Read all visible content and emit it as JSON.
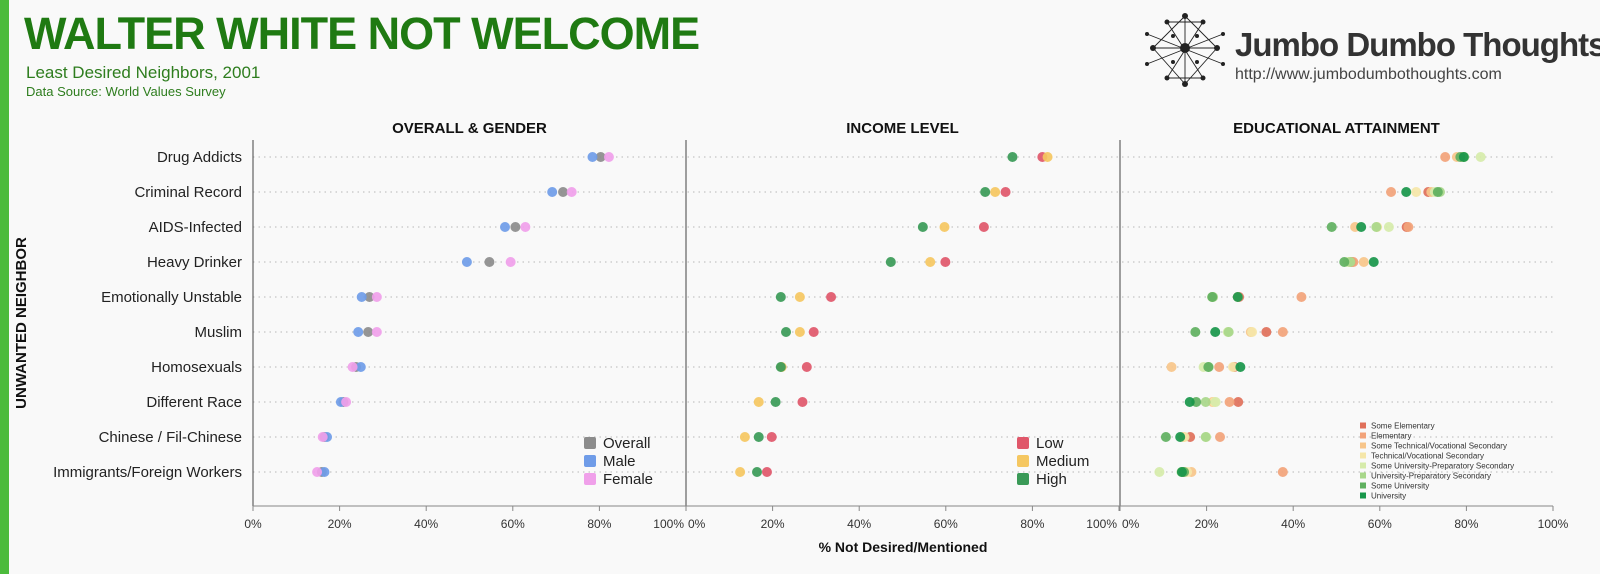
{
  "header": {
    "title": "WALTER WHITE NOT WELCOME",
    "subtitle": "Least Desired Neighbors, 2001",
    "source": "Data Source: World Values Survey"
  },
  "brand": {
    "name": "Jumbo Dumbo Thoughts",
    "url": "http://www.jumbodumbothoughts.com",
    "logo_icon": "network-graph-icon"
  },
  "colors": {
    "accent_bar": "#4cbb3c",
    "title": "#1f7a12"
  },
  "chart_data": {
    "type": "scatter",
    "ylabel": "UNWANTED NEIGHBOR",
    "xlabel": "% Not Desired/Mentioned",
    "categories": [
      "Drug Addicts",
      "Criminal Record",
      "AIDS-Infected",
      "Heavy Drinker",
      "Emotionally Unstable",
      "Muslim",
      "Homosexuals",
      "Different Race",
      "Chinese / Fil-Chinese",
      "Immigrants/Foreign Workers"
    ],
    "xlim": [
      0,
      100
    ],
    "xticks": [
      "0%",
      "20%",
      "40%",
      "60%",
      "80%",
      "100%"
    ],
    "grid": "dotted horizontal",
    "panels": [
      {
        "title": "OVERALL & GENDER",
        "legend_position": "bottom-right",
        "series": [
          {
            "name": "Overall",
            "color": "#8c8c8c",
            "values": [
              80.3,
              71.6,
              60.6,
              54.6,
              26.9,
              26.6,
              23.8,
              20.9,
              16.5,
              15.9
            ]
          },
          {
            "name": "Male",
            "color": "#6f9ce8",
            "values": [
              78.4,
              69.1,
              58.2,
              49.4,
              25.1,
              24.3,
              24.9,
              20.3,
              17.1,
              16.5
            ]
          },
          {
            "name": "Female",
            "color": "#f0a0ea",
            "values": [
              82.2,
              73.6,
              62.9,
              59.5,
              28.6,
              28.6,
              23.0,
              21.5,
              16.1,
              14.8
            ]
          }
        ]
      },
      {
        "title": "INCOME LEVEL",
        "legend_position": "bottom-right",
        "series": [
          {
            "name": "Low",
            "color": "#e0576a",
            "values": [
              82.3,
              73.8,
              68.8,
              59.9,
              33.5,
              29.5,
              27.9,
              26.9,
              19.8,
              18.7
            ]
          },
          {
            "name": "Medium",
            "color": "#f5c761",
            "values": [
              83.5,
              71.4,
              59.7,
              56.4,
              26.3,
              26.3,
              22.1,
              16.8,
              13.6,
              12.5
            ]
          },
          {
            "name": "High",
            "color": "#3a9a57",
            "values": [
              75.4,
              69.1,
              54.7,
              47.3,
              21.9,
              23.1,
              21.9,
              20.7,
              16.8,
              16.4
            ]
          }
        ]
      },
      {
        "title": "EDUCATIONAL ATTAINMENT",
        "legend_position": "bottom-right",
        "series": [
          {
            "name": "Some Elementary",
            "color": "#e0705a",
            "values": [
              79.2,
              71.2,
              66.2,
              53.5,
              27.5,
              33.8,
              26.4,
              27.3,
              16.2,
              14.6
            ]
          },
          {
            "name": "Elementary",
            "color": "#f2a37a",
            "values": [
              75.1,
              62.6,
              66.6,
              53.9,
              41.9,
              37.6,
              22.9,
              25.3,
              23.1,
              37.6
            ]
          },
          {
            "name": "Some Technical/Vocational Secondary",
            "color": "#f7c58a",
            "values": [
              77.8,
              71.9,
              54.3,
              56.3,
              27.2,
              30.2,
              11.9,
              21.4,
              14.6,
              16.5
            ]
          },
          {
            "name": "Technical/Vocational Secondary",
            "color": "#f5e6a8",
            "values": [
              79.1,
              68.4,
              59.4,
              53.1,
              21.3,
              30.5,
              26.1,
              21.8,
              14.9,
              15.5
            ]
          },
          {
            "name": "Some University-Preparatory Secondary",
            "color": "#d6ebaa",
            "values": [
              83.3,
              72.7,
              62.1,
              52.6,
              21.3,
              24.9,
              19.3,
              22.1,
              19.9,
              9.1
            ]
          },
          {
            "name": "University-Preparatory Secondary",
            "color": "#a8d78a",
            "values": [
              79.5,
              73.9,
              59.2,
              53.2,
              21.5,
              25.1,
              20.5,
              19.8,
              19.8,
              14.2
            ]
          },
          {
            "name": "Some University",
            "color": "#5fb05f",
            "values": [
              78.6,
              73.4,
              48.9,
              51.8,
              21.3,
              17.4,
              20.4,
              17.6,
              10.6,
              14.8
            ]
          },
          {
            "name": "University",
            "color": "#18964a",
            "values": [
              79.4,
              66.1,
              55.7,
              58.6,
              27.2,
              22.0,
              27.8,
              16.1,
              13.9,
              14.3
            ]
          }
        ]
      }
    ]
  }
}
